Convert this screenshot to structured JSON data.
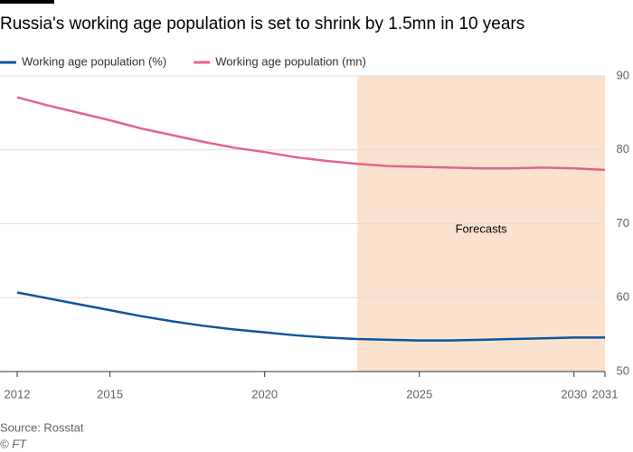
{
  "chart_data": {
    "type": "line",
    "title": "Russia's working age population is set to shrink by 1.5mn in 10 years",
    "x": [
      2012,
      2013,
      2014,
      2015,
      2016,
      2017,
      2018,
      2019,
      2020,
      2021,
      2022,
      2023,
      2024,
      2025,
      2026,
      2027,
      2028,
      2029,
      2030,
      2031
    ],
    "series": [
      {
        "name": "Working age population (%)",
        "color": "#0f5499",
        "values": [
          60.7,
          59.9,
          59.1,
          58.3,
          57.5,
          56.8,
          56.2,
          55.7,
          55.3,
          54.9,
          54.6,
          54.4,
          54.3,
          54.2,
          54.2,
          54.3,
          54.4,
          54.5,
          54.6,
          54.6
        ]
      },
      {
        "name": "Working age population (mn)",
        "color": "#e3628c",
        "values": [
          87.1,
          86.0,
          85.0,
          84.0,
          82.9,
          82.0,
          81.1,
          80.3,
          79.7,
          79.0,
          78.5,
          78.1,
          77.8,
          77.7,
          77.6,
          77.5,
          77.5,
          77.6,
          77.5,
          77.3
        ]
      }
    ],
    "xlim": [
      2012,
      2031
    ],
    "xticks": [
      2012,
      2015,
      2020,
      2025,
      2030,
      2031
    ],
    "ylim": [
      50,
      90
    ],
    "yticks": [
      50,
      60,
      70,
      80,
      90
    ],
    "grid": true,
    "shade": {
      "from": 2023,
      "to": 2031,
      "label": "Forecasts",
      "color": "#fae2cf"
    },
    "source": "Source: Rosstat",
    "credit": "© FT"
  }
}
